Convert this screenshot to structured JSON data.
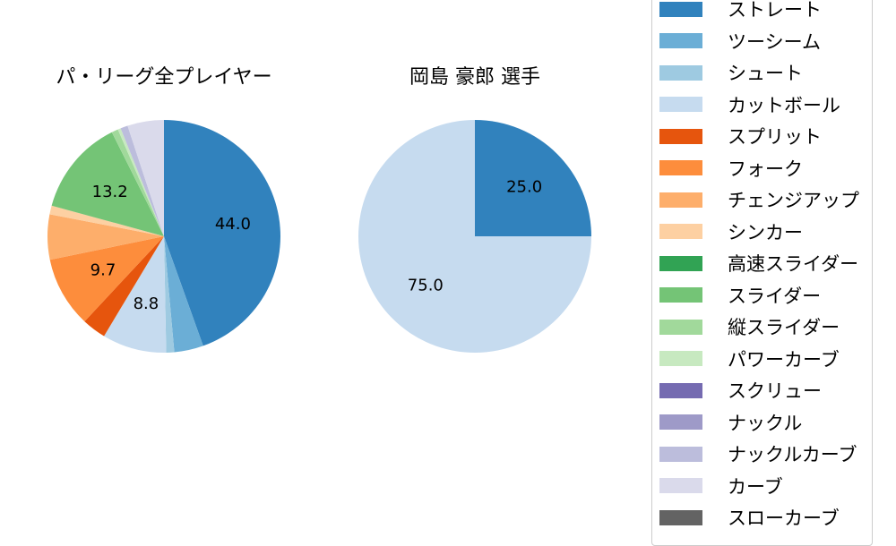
{
  "chart_data": [
    {
      "type": "pie",
      "title": "パ・リーグ全プレイヤー",
      "slices": [
        {
          "name": "ストレート",
          "value": 44.0,
          "color": "#3182bd",
          "label": "44.0"
        },
        {
          "name": "ツーシーム",
          "value": 4.0,
          "color": "#6baed6",
          "label": ""
        },
        {
          "name": "シュート",
          "value": 1.1,
          "color": "#9ecae1",
          "label": ""
        },
        {
          "name": "カットボール",
          "value": 8.8,
          "color": "#c6dbef",
          "label": "8.8"
        },
        {
          "name": "スプリット",
          "value": 3.3,
          "color": "#e6550d",
          "label": ""
        },
        {
          "name": "フォーク",
          "value": 9.7,
          "color": "#fd8d3c",
          "label": "9.7"
        },
        {
          "name": "チェンジアップ",
          "value": 6.2,
          "color": "#fdae6b",
          "label": ""
        },
        {
          "name": "シンカー",
          "value": 1.2,
          "color": "#fdd0a2",
          "label": ""
        },
        {
          "name": "高速スライダー",
          "value": 0.0,
          "color": "#31a354",
          "label": ""
        },
        {
          "name": "スライダー",
          "value": 13.2,
          "color": "#74c476",
          "label": "13.2"
        },
        {
          "name": "縦スライダー",
          "value": 0.9,
          "color": "#a1d99b",
          "label": ""
        },
        {
          "name": "パワーカーブ",
          "value": 0.4,
          "color": "#c7e9c0",
          "label": ""
        },
        {
          "name": "スクリュー",
          "value": 0.0,
          "color": "#756bb1",
          "label": ""
        },
        {
          "name": "ナックル",
          "value": 0.0,
          "color": "#9e9ac8",
          "label": ""
        },
        {
          "name": "ナックルカーブ",
          "value": 1.0,
          "color": "#bcbddc",
          "label": ""
        },
        {
          "name": "カーブ",
          "value": 5.0,
          "color": "#dadaeb",
          "label": ""
        },
        {
          "name": "スローカーブ",
          "value": 0.0,
          "color": "#636363",
          "label": ""
        }
      ]
    },
    {
      "type": "pie",
      "title": "岡島 豪郎  選手",
      "slices": [
        {
          "name": "ストレート",
          "value": 25.0,
          "color": "#3182bd",
          "label": "25.0"
        },
        {
          "name": "カットボール",
          "value": 75.0,
          "color": "#c6dbef",
          "label": "75.0"
        }
      ]
    }
  ],
  "legend": {
    "items": [
      {
        "label": "ストレート",
        "color": "#3182bd"
      },
      {
        "label": "ツーシーム",
        "color": "#6baed6"
      },
      {
        "label": "シュート",
        "color": "#9ecae1"
      },
      {
        "label": "カットボール",
        "color": "#c6dbef"
      },
      {
        "label": "スプリット",
        "color": "#e6550d"
      },
      {
        "label": "フォーク",
        "color": "#fd8d3c"
      },
      {
        "label": "チェンジアップ",
        "color": "#fdae6b"
      },
      {
        "label": "シンカー",
        "color": "#fdd0a2"
      },
      {
        "label": "高速スライダー",
        "color": "#31a354"
      },
      {
        "label": "スライダー",
        "color": "#74c476"
      },
      {
        "label": "縦スライダー",
        "color": "#a1d99b"
      },
      {
        "label": "パワーカーブ",
        "color": "#c7e9c0"
      },
      {
        "label": "スクリュー",
        "color": "#756bb1"
      },
      {
        "label": "ナックル",
        "color": "#9e9ac8"
      },
      {
        "label": "ナックルカーブ",
        "color": "#bcbddc"
      },
      {
        "label": "カーブ",
        "color": "#dadaeb"
      },
      {
        "label": "スローカーブ",
        "color": "#636363"
      }
    ]
  }
}
